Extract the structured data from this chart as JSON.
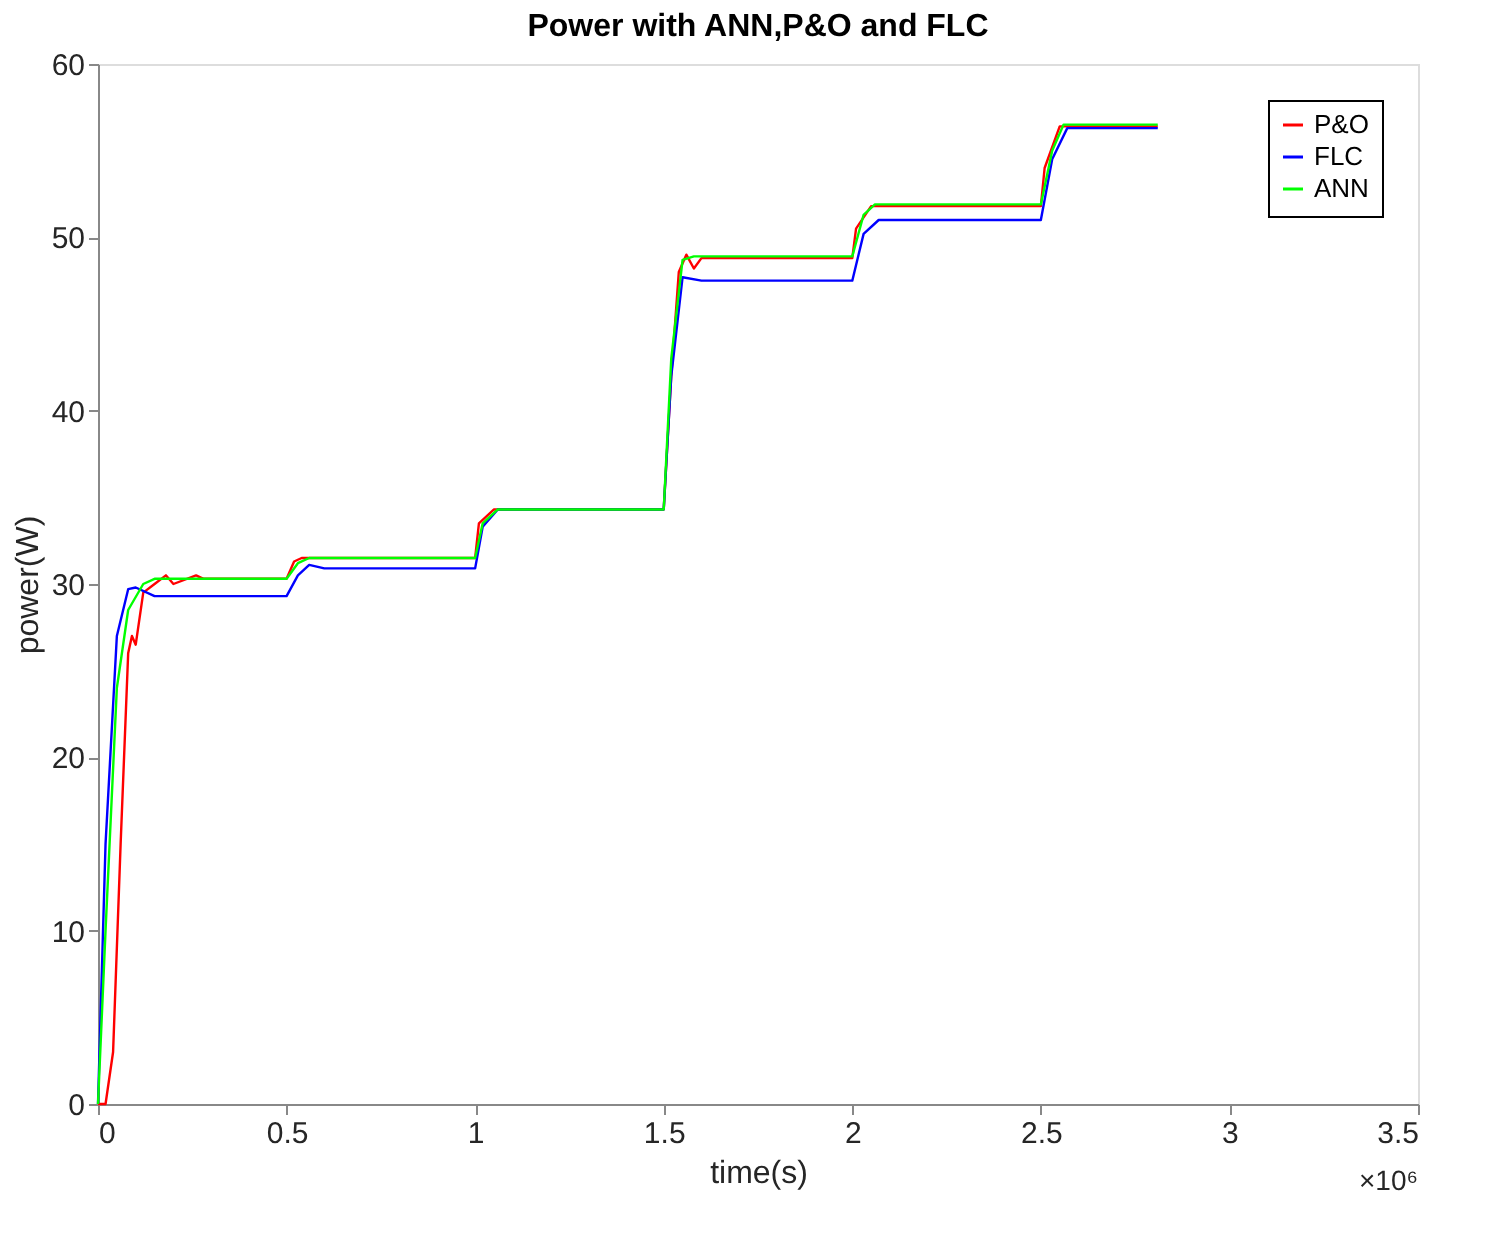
{
  "chart_data": {
    "type": "line",
    "title": "Power with ANN,P&O and FLC",
    "xlabel": "time(s)",
    "ylabel": "power(W)",
    "annotations": [
      "×10⁶"
    ],
    "xlim": [
      0,
      3.5
    ],
    "ylim": [
      0,
      60
    ],
    "xticks": [
      0,
      0.5,
      1,
      1.5,
      2,
      2.5,
      3,
      3.5
    ],
    "yticks": [
      0,
      10,
      20,
      30,
      40,
      50,
      60
    ],
    "grid": false,
    "legend": "top right",
    "marker": "none",
    "line_style": "solid",
    "series": [
      {
        "name": "P&O",
        "color": "#ff0000",
        "x": [
          0,
          0.02,
          0.04,
          0.06,
          0.08,
          0.09,
          0.1,
          0.12,
          0.15,
          0.18,
          0.2,
          0.26,
          0.28,
          0.5,
          0.52,
          0.54,
          1,
          1.01,
          1.05,
          1.5,
          1.52,
          1.54,
          1.56,
          1.58,
          1.6,
          2,
          2.01,
          2.05,
          2.5,
          2.51,
          2.55,
          2.81
        ],
        "values": [
          0,
          0,
          3,
          15,
          26,
          27,
          26.5,
          29.5,
          30,
          30.5,
          30,
          30.5,
          30.3,
          30.3,
          31.3,
          31.5,
          31.5,
          33.5,
          34.3,
          34.3,
          42,
          48,
          49,
          48.2,
          48.8,
          48.8,
          50.5,
          51.8,
          51.8,
          54,
          56.4,
          56.4
        ]
      },
      {
        "name": "FLC",
        "color": "#0000ff",
        "x": [
          0,
          0.02,
          0.05,
          0.08,
          0.1,
          0.15,
          0.5,
          0.53,
          0.56,
          0.6,
          1,
          1.02,
          1.06,
          1.5,
          1.52,
          1.55,
          1.6,
          2,
          2.03,
          2.07,
          2.5,
          2.53,
          2.57,
          2.81
        ],
        "values": [
          0,
          15,
          27,
          29.7,
          29.8,
          29.3,
          29.3,
          30.5,
          31.1,
          30.9,
          30.9,
          33.3,
          34.3,
          34.3,
          42,
          47.7,
          47.5,
          47.5,
          50.2,
          51,
          51,
          54.5,
          56.3,
          56.3
        ]
      },
      {
        "name": "ANN",
        "color": "#00ff00",
        "x": [
          0,
          0.02,
          0.05,
          0.08,
          0.12,
          0.15,
          0.5,
          0.53,
          0.56,
          1,
          1.02,
          1.06,
          1.5,
          1.52,
          1.55,
          1.58,
          2,
          2.03,
          2.06,
          2.5,
          2.53,
          2.56,
          2.81
        ],
        "values": [
          0,
          10,
          24,
          28.5,
          30,
          30.3,
          30.3,
          31.2,
          31.5,
          31.5,
          33.5,
          34.3,
          34.3,
          43,
          48.7,
          48.9,
          48.9,
          51.3,
          51.9,
          51.9,
          55,
          56.5,
          56.5
        ]
      }
    ]
  }
}
